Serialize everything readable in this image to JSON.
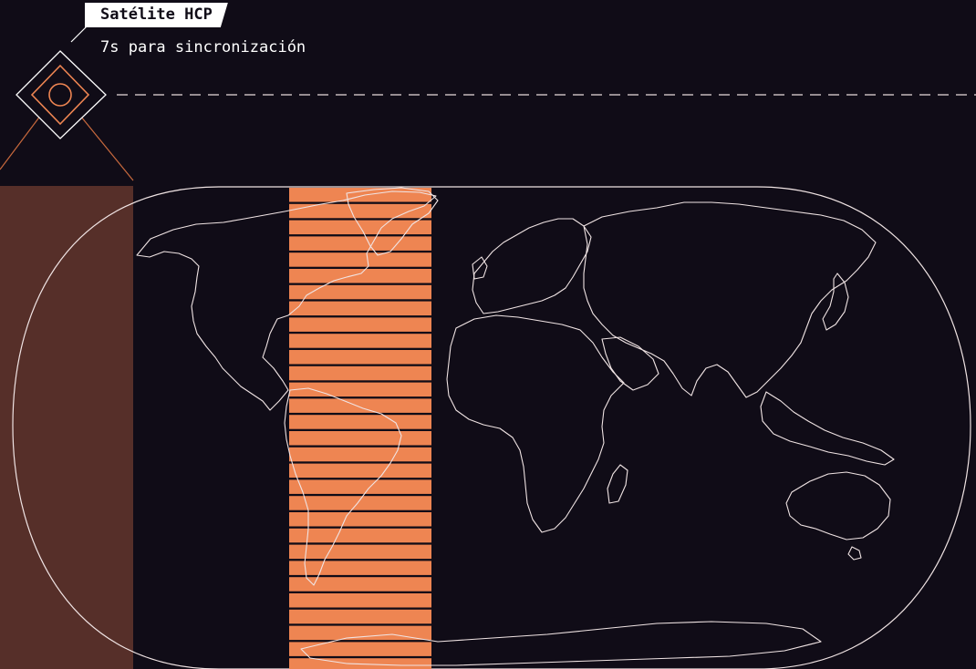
{
  "satellite": {
    "name": "Satélite HCP",
    "status_text": "7s para sincronización"
  },
  "colors": {
    "background": "#100c17",
    "accent": "#ee8552",
    "coverage_fill": "#562f29",
    "outline": "#f0e4e4"
  },
  "icons": {
    "satellite": "satellite-diamond-icon"
  }
}
